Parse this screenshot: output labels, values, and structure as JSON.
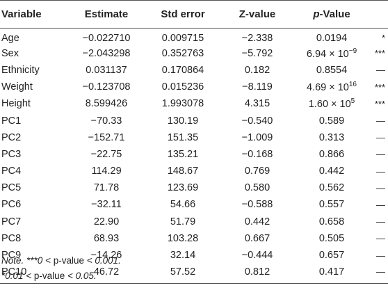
{
  "table": {
    "headers": {
      "variable": "Variable",
      "estimate": "Estimate",
      "std_error": "Std error",
      "z_value": "Z-value",
      "p_value_italic": "p",
      "p_value_rest": "-Value"
    },
    "rows": [
      {
        "variable": "Age",
        "estimate": "−0.022710",
        "std_error": "0.009715",
        "z_value": "−2.338",
        "p_value": "0.0194",
        "p_sup": "",
        "sig": "*"
      },
      {
        "variable": "Sex",
        "estimate": "−2.043298",
        "std_error": "0.352763",
        "z_value": "−5.792",
        "p_value": "6.94 × 10",
        "p_sup": "−9",
        "sig": "***"
      },
      {
        "variable": "Ethnicity",
        "estimate": "0.031137",
        "std_error": "0.170864",
        "z_value": "0.182",
        "p_value": "0.8554",
        "p_sup": "",
        "sig": "—"
      },
      {
        "variable": "Weight",
        "estimate": "−0.123708",
        "std_error": "0.015236",
        "z_value": "−8.119",
        "p_value": "4.69 × 10",
        "p_sup": "16",
        "sig": "***"
      },
      {
        "variable": "Height",
        "estimate": "8.599426",
        "std_error": "1.993078",
        "z_value": "4.315",
        "p_value": "1.60 × 10",
        "p_sup": "5",
        "sig": "***"
      },
      {
        "variable": "PC1",
        "estimate": "−70.33",
        "std_error": "130.19",
        "z_value": "−0.540",
        "p_value": "0.589",
        "p_sup": "",
        "sig": "—"
      },
      {
        "variable": "PC2",
        "estimate": "−152.71",
        "std_error": "151.35",
        "z_value": "−1.009",
        "p_value": "0.313",
        "p_sup": "",
        "sig": "—"
      },
      {
        "variable": "PC3",
        "estimate": "−22.75",
        "std_error": "135.21",
        "z_value": "−0.168",
        "p_value": "0.866",
        "p_sup": "",
        "sig": "—"
      },
      {
        "variable": "PC4",
        "estimate": "114.29",
        "std_error": "148.67",
        "z_value": "0.769",
        "p_value": "0.442",
        "p_sup": "",
        "sig": "—"
      },
      {
        "variable": "PC5",
        "estimate": "71.78",
        "std_error": "123.69",
        "z_value": "0.580",
        "p_value": "0.562",
        "p_sup": "",
        "sig": "—"
      },
      {
        "variable": "PC6",
        "estimate": "−32.11",
        "std_error": "54.66",
        "z_value": "−0.588",
        "p_value": "0.557",
        "p_sup": "",
        "sig": "—"
      },
      {
        "variable": "PC7",
        "estimate": "22.90",
        "std_error": "51.79",
        "z_value": "0.442",
        "p_value": "0.658",
        "p_sup": "",
        "sig": "—"
      },
      {
        "variable": "PC8",
        "estimate": "68.93",
        "std_error": "103.28",
        "z_value": "0.667",
        "p_value": "0.505",
        "p_sup": "",
        "sig": "—"
      },
      {
        "variable": "PC9",
        "estimate": "−14.26",
        "std_error": "32.14",
        "z_value": "−0.444",
        "p_value": "0.657",
        "p_sup": "",
        "sig": "—"
      },
      {
        "variable": "PC10",
        "estimate": "46.72",
        "std_error": "57.52",
        "z_value": "0.812",
        "p_value": "0.417",
        "p_sup": "",
        "sig": "—"
      }
    ]
  },
  "notes": {
    "line1_prefix": "Note.",
    "line1_body": " ***0 < ",
    "line1_plain": "p-value",
    "line1_suffix": " < 0.001.",
    "line2_body": "*0.01 < ",
    "line2_plain": "p-value",
    "line2_suffix": " < 0.05."
  }
}
